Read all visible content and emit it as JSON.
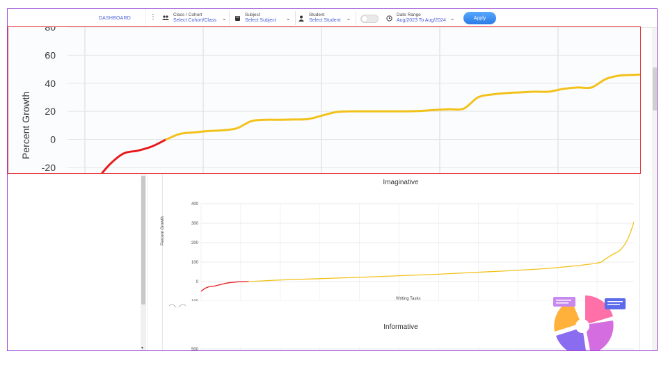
{
  "header": {
    "dashboard_label": "DASHBOARD",
    "filters": [
      {
        "label": "Class / Cohort",
        "value": "Select Cohort/Class",
        "icon": "group-icon"
      },
      {
        "label": "Subject",
        "value": "Select Subject",
        "icon": "book-icon"
      },
      {
        "label": "Student",
        "value": "Select Student",
        "icon": "person-icon"
      },
      {
        "label": "Date Range",
        "value": "Aug/2023 To Aug/2024",
        "icon": "clock-icon"
      }
    ],
    "apply_label": "Apply"
  },
  "colors": {
    "accent": "#4a5fd6",
    "negative_line": "#e8191c",
    "positive_line": "#f2c11a",
    "highlight_border": "#e5393d",
    "frame_border": "#9b45d6"
  },
  "zoom_chart": {
    "ylabel": "Percent Growth",
    "y_ticks": [
      "60",
      "40",
      "20",
      "0",
      "-20"
    ],
    "partial_tick": "80"
  },
  "charts": [
    {
      "title": "Imaginative",
      "ylabel": "Percent Growth",
      "xlabel": "Writing Tasks",
      "y_ticks": [
        "400",
        "300",
        "200",
        "100",
        "0",
        "-100"
      ]
    },
    {
      "title": "Informative",
      "y_ticks": [
        "500"
      ]
    }
  ],
  "chart_data": [
    {
      "type": "line",
      "title": "",
      "ylabel": "Percent Growth",
      "xlabel": "",
      "ylim": [
        -25,
        80
      ],
      "series": [
        {
          "color": "#e8191c",
          "x": [
            0,
            1,
            2,
            3,
            4,
            5
          ],
          "y": [
            -30,
            -18,
            -10,
            -8,
            -5,
            0
          ]
        },
        {
          "color": "#f2c11a",
          "x": [
            5,
            6,
            7,
            8,
            9,
            10,
            11,
            12,
            13,
            14,
            15,
            16,
            17,
            18,
            19,
            20,
            21,
            22,
            23,
            24,
            25,
            26,
            27,
            28,
            29,
            30,
            31,
            32,
            33,
            34,
            35,
            36,
            37,
            38,
            39,
            40
          ],
          "y": [
            0,
            4,
            5,
            6,
            6.5,
            8,
            13,
            14,
            14,
            14.2,
            14.5,
            17,
            19.5,
            20,
            20,
            20,
            20,
            20,
            20.3,
            21,
            21.5,
            22,
            30,
            32,
            33,
            33.5,
            34,
            34,
            36,
            37,
            37,
            43,
            45.5,
            46,
            46.5,
            47
          ]
        }
      ]
    },
    {
      "type": "line",
      "title": "Imaginative",
      "xlabel": "Writing Tasks",
      "ylabel": "Percent Growth",
      "ylim": [
        -100,
        400
      ],
      "series": [
        {
          "color": "#e8191c",
          "x": [
            0,
            1,
            2,
            3,
            4,
            5,
            6,
            7,
            8,
            9,
            10,
            11,
            12
          ],
          "y": [
            -50,
            -35,
            -27,
            -24,
            -20,
            -15,
            -10,
            -6,
            -4,
            -2,
            -1,
            0,
            0
          ]
        },
        {
          "color": "#f2c11a",
          "x": [
            12,
            20,
            30,
            40,
            50,
            60,
            70,
            80,
            90,
            100,
            102,
            104,
            106,
            108,
            110
          ],
          "y": [
            0,
            8,
            15,
            22,
            30,
            38,
            48,
            58,
            72,
            95,
            115,
            140,
            165,
            230,
            350
          ]
        }
      ]
    }
  ]
}
